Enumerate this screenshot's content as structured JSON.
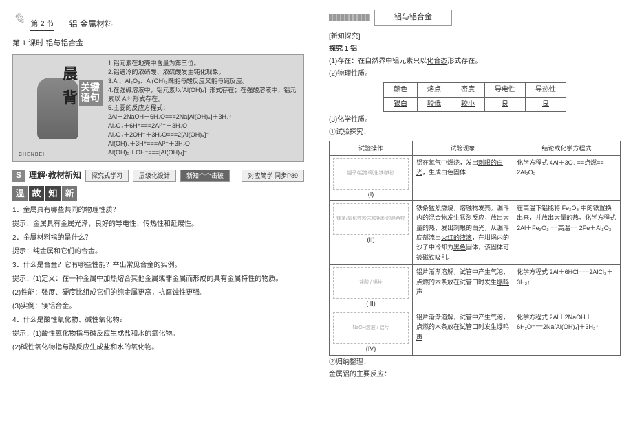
{
  "section": {
    "num": "第 2 节",
    "title": "铝  金属材料",
    "lesson": "第 1 课时  铝与铝合金"
  },
  "morning": {
    "big1": "晨",
    "big2": "背",
    "tag": "关键语句",
    "pinyin": "CHENBEI",
    "points": [
      "1.铝元素在地壳中含量为第三位。",
      "2.铝遇冷的浓硝酸、浓硫酸发生钝化现象。",
      "3.Al、Al₂O₃、Al(OH)₃既能与酸反应又能与碱反应。",
      "4.在强碱溶液中，铝元素以[Al(OH)₄]⁻形式存在；在强酸溶液中，铝元素以 Al³⁺形式存在。",
      "5.主要的反应方程式：",
      "2Al＋2NaOH＋6H₂O===2Na[Al(OH)₄]＋3H₂↑",
      "Al₂O₃＋6H⁺===2Al³⁺＋3H₂O",
      "Al₂O₃＋2OH⁻＋3H₂O===2[Al(OH)₄]⁻",
      "Al(OH)₃＋3H⁺===Al³⁺＋3H₂O",
      "Al(OH)₃＋OH⁻===[Al(OH)₄]⁻"
    ]
  },
  "tabs": {
    "s": "S",
    "label": "理解·教材新知",
    "t1": "探究式学习",
    "t2": "层级化设计",
    "t3": "新知个个击破",
    "t4": "对应简学 同步P89"
  },
  "wengu": {
    "a": "温",
    "b": "故",
    "c": "知",
    "d": "新"
  },
  "qa": {
    "q1n": "1．",
    "q1": "金属具有哪些共同的物理性质？",
    "a1": "提示：金属具有金属光泽，良好的导电性、传热性和延展性。",
    "q2n": "2．",
    "q2": "金属材料指的是什么？",
    "a2": "提示：纯金属和它们的合金。",
    "q3n": "3．",
    "q3": "什么是合金？它有哪些性能？举出常见合金的实例。",
    "a3a": "提示：(1)定义：在一种金属中加热熔合其他金属或非金属而形成的具有金属特性的物质。",
    "a3b": "(2)性能：强度、硬度比组成它们的纯金属更高，抗腐蚀性更强。",
    "a3c": "(3)实例：镁铝合金。",
    "q4n": "4．",
    "q4": "什么是酸性氧化物、碱性氧化物？",
    "a4a": "提示：(1)酸性氧化物指与碱反应生成盐和水的氧化物。",
    "a4b": "(2)碱性氧化物指与酸反应生成盐和水的氧化物。"
  },
  "unitPill": "铝与铝合金",
  "right": {
    "xztj": "[新知探究]",
    "tj": "探究 1  铝",
    "cz": "(1)存在：在自然界中铝元素只以",
    "czU": "化合态",
    "cz2": "形式存在。",
    "wlxz": "(2)物理性质。",
    "propH": [
      "颜色",
      "熔点",
      "密度",
      "导电性",
      "导热性"
    ],
    "propV": [
      "银白",
      "较低",
      "较小",
      "良",
      "良"
    ],
    "hxxz": "(3)化学性质。",
    "sytj": "①试验探究：",
    "th1": "试验操作",
    "th2": "试验现象",
    "th3": "结论或化学方程式",
    "r1b": "铝在氧气中燃烧，发出",
    "r1bU": "刺眼的白光",
    "r1b2": "，生成白色固体",
    "r1c": "化学方程式\n4Al＋3O₂ ==点燃== 2Al₂O₃",
    "r2b1": "铁条猛烈燃烧，熔融物发亮。漏斗内的混合物发生猛烈反应，放出大量的热，发出",
    "r2bU1": "刺眼的白光",
    "r2b2": "，从漏斗底部流出",
    "r2bU2": "火红的液滴",
    "r2b3": "，在坩埚内的沙子中冷却为",
    "r2bU3": "黑色",
    "r2b4": "固体，该固体可被磁铁吸引。",
    "r2c": "在高温下铝能将 Fe₂O₃ 中的铁置换出来，并放出大量的热。化学方程式\n2Al＋Fe₂O₃ ==高温== 2Fe＋Al₂O₃",
    "r3b": "铝片渐渐溶解，试管中产生气泡，点燃的木条放在试管口时发生",
    "r3bU": "爆鸣声",
    "r3c": "化学方程式\n2Al＋6HCl===2AlCl₃＋3H₂↑",
    "r4b": "铝片渐渐溶解，试管中产生气泡，点燃的木条放在试管口时发生",
    "r4bU": "爆鸣声",
    "r4c": "化学方程式\n2Al＋2NaOH＋6H₂O===2Na[Al(OH)₄]＋3H₂↑",
    "gnzl": "②归纳整理：",
    "zyfy": "金属铝的主要反应：",
    "sk1": "(I)",
    "sk2": "(II)",
    "sk3": "(III)",
    "sk4": "(IV)",
    "sk1lbl": "镊子/铝箔/氧化铁/铁砂",
    "sk2lbl": "镁条/氧化铁粉末和铝粉的混合物",
    "sk3lbl": "盐酸 / 铝片",
    "sk4lbl": "NaOH溶液 / 铝片"
  }
}
